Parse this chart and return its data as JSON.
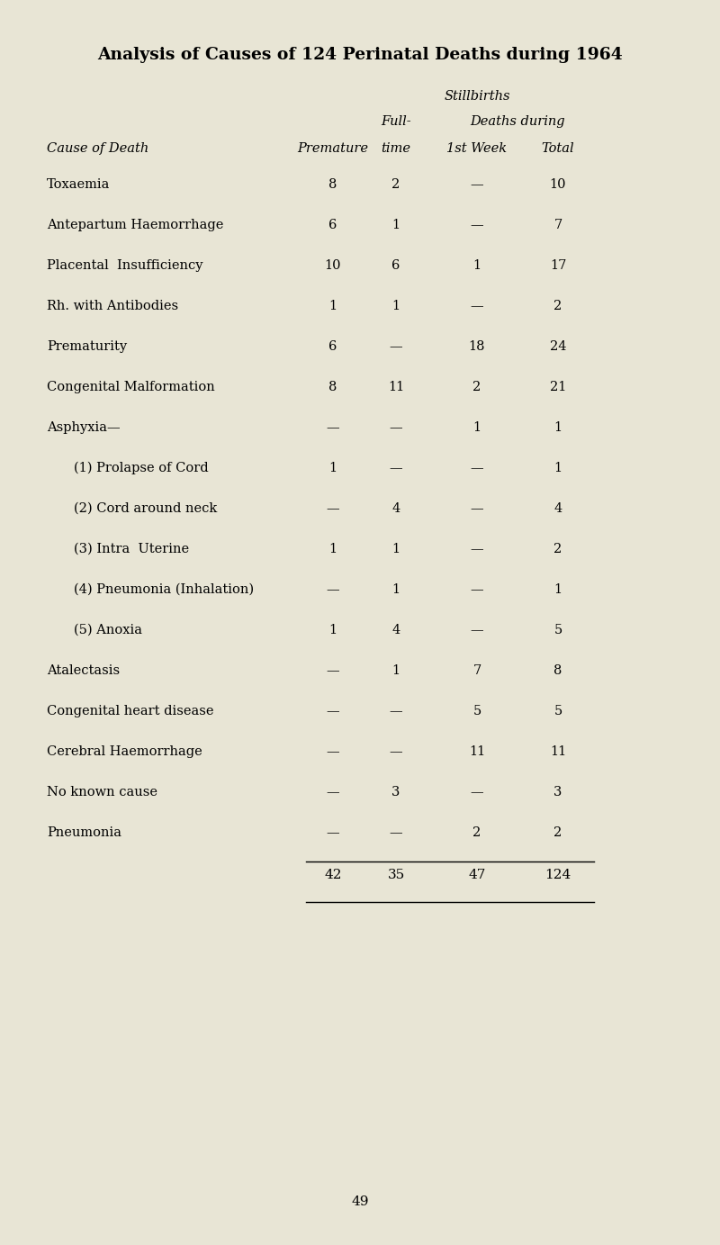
{
  "title": "Analysis of Causes of 124 Perinatal Deaths during 1964",
  "bg_color": "#e8e5d5",
  "rows": [
    {
      "label": "Toxaemia",
      "dots": "...    ...",
      "indent": false,
      "vals": [
        "8",
        "2",
        "—",
        "10"
      ]
    },
    {
      "label": "Antepartum Haemorrhage",
      "dots": "...   ...",
      "indent": false,
      "vals": [
        "6",
        "1",
        "—",
        "7"
      ]
    },
    {
      "label": "Placental  Insufficiency",
      "dots": "...   ...",
      "indent": false,
      "vals": [
        "10",
        "6",
        "1",
        "17"
      ]
    },
    {
      "label": "Rh. with Antibodies",
      "dots": "...   ...   ...",
      "indent": false,
      "vals": [
        "1",
        "1",
        "—",
        "2"
      ]
    },
    {
      "label": "Prematurity",
      "dots": "...   ...   ...   ...",
      "indent": false,
      "vals": [
        "6",
        "—",
        "18",
        "24"
      ]
    },
    {
      "label": "Congenital Malformation",
      "dots": "...   ...",
      "indent": false,
      "vals": [
        "8",
        "11",
        "2",
        "21"
      ]
    },
    {
      "label": "Asphyxia—",
      "dots": "",
      "indent": false,
      "vals": [
        "—",
        "—",
        "1",
        "1"
      ]
    },
    {
      "label": "(1) Prolapse of Cord",
      "dots": "...   ...",
      "indent": true,
      "vals": [
        "1",
        "—",
        "—",
        "1"
      ]
    },
    {
      "label": "(2) Cord around neck",
      "dots": "...   ...",
      "indent": true,
      "vals": [
        "—",
        "4",
        "—",
        "4"
      ]
    },
    {
      "label": "(3) Intra  Uterine",
      "dots": "...   ...   ...",
      "indent": true,
      "vals": [
        "1",
        "1",
        "—",
        "2"
      ]
    },
    {
      "label": "(4) Pneumonia (Inhalation)",
      "dots": "...",
      "indent": true,
      "vals": [
        "—",
        "1",
        "—",
        "1"
      ]
    },
    {
      "label": "(5) Anoxia",
      "dots": "...   ...   ...",
      "indent": true,
      "vals": [
        "1",
        "4",
        "—",
        "5"
      ]
    },
    {
      "label": "Atalectasis",
      "dots": "...   ...   ...   ...",
      "indent": false,
      "vals": [
        "—",
        "1",
        "7",
        "8"
      ]
    },
    {
      "label": "Congenital heart disease",
      "dots": "...   ...",
      "indent": false,
      "vals": [
        "—",
        "—",
        "5",
        "5"
      ]
    },
    {
      "label": "Cerebral Haemorrhage",
      "dots": "...   ...",
      "indent": false,
      "vals": [
        "—",
        "—",
        "11",
        "11"
      ]
    },
    {
      "label": "No known cause",
      "dots": "...   ...   ...",
      "indent": false,
      "vals": [
        "—",
        "3",
        "—",
        "3"
      ]
    },
    {
      "label": "Pneumonia",
      "dots": "...   ...   ...   ...",
      "indent": false,
      "vals": [
        "—",
        "—",
        "2",
        "2"
      ]
    }
  ],
  "totals": [
    "42",
    "35",
    "47",
    "124"
  ],
  "page_number": "49",
  "title_fontsize": 13.5,
  "header_fontsize": 10.5,
  "row_fontsize": 10.5,
  "total_fontsize": 11
}
